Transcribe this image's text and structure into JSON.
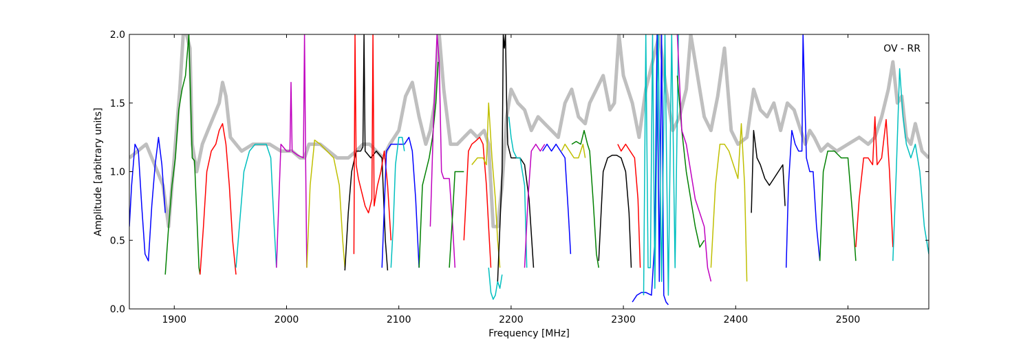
{
  "chart_data": {
    "type": "line",
    "title": "",
    "annotation": "OV - RR",
    "xlabel": "Frequency [MHz]",
    "ylabel": "Amplitude [arbitrary units]",
    "xlim": [
      1860,
      2572
    ],
    "ylim": [
      0,
      2.0
    ],
    "xticks": [
      1900,
      2000,
      2100,
      2200,
      2300,
      2400,
      2500
    ],
    "xtick_labels": [
      "1900",
      "2000",
      "2100",
      "2200",
      "2300",
      "2400",
      "2500"
    ],
    "yticks": [
      0.0,
      0.5,
      1.0,
      1.5,
      2.0
    ],
    "ytick_labels": [
      "0.0",
      "0.5",
      "1.0",
      "1.5",
      "2.0"
    ],
    "grid": false,
    "background_series": {
      "color": "#bfbfbf",
      "x": [
        1860,
        1875,
        1890,
        1895,
        1902,
        1905,
        1908,
        1911,
        1914,
        1916,
        1920,
        1925,
        1930,
        1935,
        1940,
        1943,
        1946,
        1950,
        1955,
        1960,
        1970,
        1985,
        1995,
        2005,
        2012,
        2016,
        2020,
        2030,
        2045,
        2055,
        2062,
        2068,
        2074,
        2080,
        2086,
        2092,
        2100,
        2106,
        2112,
        2118,
        2124,
        2128,
        2132,
        2136,
        2140,
        2146,
        2152,
        2158,
        2164,
        2170,
        2176,
        2180,
        2184,
        2188,
        2192,
        2196,
        2200,
        2206,
        2212,
        2218,
        2224,
        2230,
        2236,
        2242,
        2248,
        2254,
        2260,
        2266,
        2270,
        2276,
        2282,
        2288,
        2292,
        2296,
        2300,
        2304,
        2308,
        2314,
        2320,
        2326,
        2332,
        2338,
        2344,
        2350,
        2356,
        2360,
        2366,
        2372,
        2378,
        2384,
        2390,
        2396,
        2402,
        2410,
        2416,
        2422,
        2428,
        2434,
        2440,
        2446,
        2452,
        2458,
        2462,
        2466,
        2470,
        2476,
        2482,
        2490,
        2500,
        2510,
        2518,
        2524,
        2530,
        2536,
        2540,
        2544,
        2548,
        2552,
        2556,
        2560,
        2566,
        2572
      ],
      "y": [
        1.1,
        1.2,
        0.9,
        0.6,
        1.3,
        1.6,
        2.0,
        2.0,
        1.9,
        1.2,
        1.0,
        1.2,
        1.3,
        1.4,
        1.5,
        1.65,
        1.55,
        1.25,
        1.2,
        1.15,
        1.2,
        1.2,
        1.15,
        1.15,
        1.1,
        1.1,
        1.2,
        1.2,
        1.1,
        1.1,
        1.15,
        1.2,
        1.2,
        1.15,
        1.1,
        1.2,
        1.3,
        1.55,
        1.65,
        1.4,
        1.2,
        1.3,
        1.5,
        2.0,
        1.6,
        1.2,
        1.2,
        1.25,
        1.3,
        1.25,
        1.3,
        1.2,
        0.6,
        0.6,
        0.9,
        1.4,
        1.6,
        1.5,
        1.45,
        1.3,
        1.4,
        1.35,
        1.3,
        1.25,
        1.5,
        1.6,
        1.4,
        1.35,
        1.5,
        1.6,
        1.7,
        1.45,
        1.5,
        2.0,
        1.7,
        1.6,
        1.5,
        1.25,
        1.6,
        1.8,
        2.0,
        1.6,
        1.3,
        1.4,
        1.6,
        2.0,
        1.7,
        1.4,
        1.3,
        1.55,
        1.9,
        1.3,
        1.2,
        1.25,
        1.6,
        1.45,
        1.4,
        1.5,
        1.3,
        1.5,
        1.45,
        1.3,
        1.2,
        1.3,
        1.25,
        1.15,
        1.2,
        1.15,
        1.2,
        1.25,
        1.2,
        1.25,
        1.4,
        1.6,
        1.8,
        1.5,
        1.55,
        1.25,
        1.2,
        1.35,
        1.15,
        1.1
      ]
    },
    "series": [
      {
        "color": "#0000ff",
        "x": [
          1860,
          1862,
          1865,
          1868,
          1871,
          1874,
          1877,
          1880,
          1883,
          1886,
          1889,
          1892
        ],
        "y": [
          0.6,
          0.9,
          1.2,
          1.15,
          0.75,
          0.4,
          0.35,
          0.75,
          1.05,
          1.25,
          1.05,
          0.7
        ]
      },
      {
        "color": "#008000",
        "x": [
          1892,
          1895,
          1898,
          1901,
          1904,
          1907,
          1910,
          1913,
          1916,
          1918,
          1920,
          1922,
          1923
        ],
        "y": [
          0.25,
          0.6,
          0.9,
          1.1,
          1.45,
          1.6,
          1.7,
          2.0,
          1.1,
          1.08,
          0.7,
          0.3,
          0.25
        ]
      },
      {
        "color": "#ff0000",
        "x": [
          1923,
          1926,
          1929,
          1933,
          1937,
          1940,
          1943,
          1946,
          1949,
          1952,
          1955
        ],
        "y": [
          0.25,
          0.6,
          1.0,
          1.15,
          1.2,
          1.3,
          1.35,
          1.2,
          0.9,
          0.5,
          0.25
        ]
      },
      {
        "color": "#00bfbf",
        "x": [
          1955,
          1958,
          1962,
          1967,
          1972,
          1977,
          1982,
          1986,
          1989,
          1991
        ],
        "y": [
          0.3,
          0.6,
          1.0,
          1.15,
          1.2,
          1.2,
          1.2,
          1.1,
          0.6,
          0.3
        ]
      },
      {
        "color": "#bf00bf",
        "x": [
          1991,
          1995,
          2000,
          2003,
          2004,
          2005,
          2010,
          2015,
          2016,
          2017,
          2018
        ],
        "y": [
          0.3,
          1.2,
          1.15,
          1.15,
          1.65,
          1.15,
          1.12,
          1.1,
          2.0,
          1.1,
          0.3
        ]
      },
      {
        "color": "#bfbf00",
        "x": [
          2018,
          2021,
          2025,
          2030,
          2036,
          2042,
          2047,
          2050,
          2052
        ],
        "y": [
          0.3,
          0.9,
          1.23,
          1.2,
          1.15,
          1.1,
          0.9,
          0.5,
          0.3
        ]
      },
      {
        "color": "#000000",
        "x": [
          2052,
          2055,
          2058,
          2062,
          2066,
          2068,
          2069,
          2070,
          2075,
          2080,
          2085,
          2088,
          2090
        ],
        "y": [
          0.28,
          0.7,
          1.0,
          1.15,
          1.15,
          1.18,
          2.0,
          1.15,
          1.1,
          1.15,
          1.1,
          0.5,
          0.28
        ]
      },
      {
        "color": "#ff0000",
        "x": [
          2060,
          2061,
          2062,
          2064,
          2067,
          2070,
          2073,
          2076,
          2077,
          2078,
          2081,
          2084,
          2087,
          2090,
          2093
        ],
        "y": [
          0.4,
          2.0,
          1.05,
          0.95,
          0.85,
          0.75,
          0.7,
          0.8,
          2.0,
          0.75,
          0.9,
          1.0,
          1.15,
          0.9,
          0.5
        ]
      },
      {
        "color": "#0000ff",
        "x": [
          2085,
          2089,
          2093,
          2097,
          2101,
          2105,
          2109,
          2112,
          2115,
          2118
        ],
        "y": [
          0.3,
          1.15,
          1.2,
          1.2,
          1.2,
          1.2,
          1.25,
          1.15,
          0.8,
          0.3
        ]
      },
      {
        "color": "#00bfbf",
        "x": [
          2093,
          2095,
          2097,
          2100,
          2103,
          2105
        ],
        "y": [
          0.3,
          0.6,
          1.05,
          1.25,
          1.25,
          1.15
        ]
      },
      {
        "color": "#008000",
        "x": [
          2118,
          2121,
          2124,
          2127,
          2130,
          2133,
          2135
        ],
        "y": [
          0.3,
          0.9,
          1.0,
          1.1,
          1.25,
          1.5,
          1.8
        ]
      },
      {
        "color": "#bf00bf",
        "x": [
          2128,
          2131,
          2134,
          2136,
          2138,
          2140,
          2142,
          2145,
          2148,
          2150
        ],
        "y": [
          0.6,
          1.4,
          2.0,
          1.8,
          1.0,
          0.95,
          0.95,
          0.95,
          0.6,
          0.3
        ]
      },
      {
        "color": "#008000",
        "x": [
          2145,
          2148,
          2150,
          2152,
          2155,
          2158
        ],
        "y": [
          0.3,
          0.7,
          1.0,
          1.0,
          1.0,
          1.0
        ]
      },
      {
        "color": "#ff0000",
        "x": [
          2158,
          2162,
          2165,
          2168,
          2172,
          2175,
          2178,
          2180,
          2182
        ],
        "y": [
          0.5,
          1.15,
          1.2,
          1.22,
          1.25,
          1.2,
          0.9,
          0.6,
          0.3
        ]
      },
      {
        "color": "#bfbf00",
        "x": [
          2165,
          2170,
          2175,
          2178,
          2180,
          2183,
          2186,
          2188,
          2190
        ],
        "y": [
          1.05,
          1.1,
          1.1,
          1.05,
          1.5,
          1.1,
          0.8,
          0.5,
          0.3
        ]
      },
      {
        "color": "#00bfbf",
        "x": [
          2180,
          2182,
          2184,
          2186,
          2188,
          2190,
          2192
        ],
        "y": [
          0.3,
          0.12,
          0.07,
          0.1,
          0.2,
          0.15,
          0.25
        ]
      },
      {
        "color": "#000000",
        "x": [
          2188,
          2190,
          2192,
          2193,
          2194,
          2195,
          2196,
          2197,
          2200,
          2204,
          2208,
          2212,
          2216,
          2220
        ],
        "y": [
          0.2,
          0.6,
          1.0,
          2.0,
          1.9,
          2.0,
          1.5,
          1.2,
          1.1,
          1.1,
          1.1,
          1.05,
          0.8,
          0.3
        ]
      },
      {
        "color": "#00bfbf",
        "x": [
          2198,
          2200,
          2202,
          2205,
          2208,
          2212,
          2214
        ],
        "y": [
          1.4,
          1.25,
          1.15,
          1.1,
          1.1,
          0.9,
          0.3
        ]
      },
      {
        "color": "#bf00bf",
        "x": [
          2212,
          2215,
          2218,
          2222,
          2226,
          2230
        ],
        "y": [
          0.3,
          0.8,
          1.15,
          1.2,
          1.15,
          1.2
        ]
      },
      {
        "color": "#0000ff",
        "x": [
          2228,
          2232,
          2236,
          2240,
          2244,
          2248,
          2251,
          2253
        ],
        "y": [
          1.15,
          1.2,
          1.15,
          1.2,
          1.15,
          1.1,
          0.7,
          0.4
        ]
      },
      {
        "color": "#bfbf00",
        "x": [
          2245,
          2248,
          2252,
          2256,
          2260,
          2264,
          2266
        ],
        "y": [
          1.15,
          1.2,
          1.15,
          1.1,
          1.1,
          1.2,
          1.1
        ]
      },
      {
        "color": "#008000",
        "x": [
          2254,
          2258,
          2262,
          2265,
          2268,
          2270,
          2273,
          2276,
          2278
        ],
        "y": [
          1.2,
          1.22,
          1.2,
          1.3,
          1.2,
          1.15,
          0.8,
          0.4,
          0.3
        ]
      },
      {
        "color": "#000000",
        "x": [
          2278,
          2282,
          2286,
          2290,
          2294,
          2298,
          2302,
          2305,
          2307
        ],
        "y": [
          0.35,
          1.0,
          1.1,
          1.12,
          1.12,
          1.1,
          1.0,
          0.7,
          0.3
        ]
      },
      {
        "color": "#ff0000",
        "x": [
          2295,
          2298,
          2302,
          2306,
          2310,
          2313,
          2315
        ],
        "y": [
          1.2,
          1.15,
          1.2,
          1.15,
          1.1,
          0.8,
          0.3
        ]
      },
      {
        "color": "#0000ff",
        "x": [
          2308,
          2312,
          2316,
          2320,
          2325,
          2328,
          2330,
          2332,
          2334,
          2336,
          2338,
          2340
        ],
        "y": [
          0.05,
          0.1,
          0.12,
          0.12,
          0.1,
          0.5,
          2.0,
          0.2,
          2.0,
          0.1,
          0.05,
          0.03
        ]
      },
      {
        "color": "#00bfbf",
        "x": [
          2318,
          2320,
          2322,
          2324,
          2326,
          2328,
          2331,
          2334,
          2337,
          2340,
          2343,
          2346,
          2349
        ],
        "y": [
          0.1,
          2.0,
          0.3,
          0.3,
          2.0,
          0.15,
          2.0,
          0.2,
          2.0,
          0.1,
          2.0,
          0.3,
          2.0
        ]
      },
      {
        "color": "#008000",
        "x": [
          2348,
          2352,
          2356,
          2360,
          2364,
          2368,
          2372
        ],
        "y": [
          1.7,
          1.3,
          1.0,
          0.8,
          0.6,
          0.45,
          0.5
        ]
      },
      {
        "color": "#bf00bf",
        "x": [
          2348,
          2352,
          2356,
          2360,
          2364,
          2368,
          2372,
          2375,
          2378
        ],
        "y": [
          2.0,
          1.3,
          1.2,
          1.0,
          0.8,
          0.7,
          0.6,
          0.3,
          0.2
        ]
      },
      {
        "color": "#bfbf00",
        "x": [
          2378,
          2382,
          2386,
          2390,
          2394,
          2398,
          2402,
          2405,
          2408,
          2410
        ],
        "y": [
          0.3,
          0.9,
          1.2,
          1.2,
          1.15,
          1.05,
          0.95,
          1.35,
          0.9,
          0.2
        ]
      },
      {
        "color": "#000000",
        "x": [
          2414,
          2416,
          2419,
          2422,
          2426,
          2430,
          2434,
          2438,
          2442,
          2444
        ],
        "y": [
          0.7,
          1.3,
          1.1,
          1.05,
          0.95,
          0.9,
          0.95,
          1.0,
          1.05,
          0.75
        ]
      },
      {
        "color": "#0000ff",
        "x": [
          2445,
          2447,
          2450,
          2453,
          2456,
          2459,
          2460,
          2463,
          2466,
          2469,
          2472,
          2475
        ],
        "y": [
          0.3,
          0.9,
          1.3,
          1.2,
          1.15,
          1.15,
          2.0,
          1.1,
          1.0,
          1.0,
          0.6,
          0.35
        ]
      },
      {
        "color": "#008000",
        "x": [
          2475,
          2478,
          2482,
          2488,
          2494,
          2500,
          2504,
          2507
        ],
        "y": [
          0.35,
          1.0,
          1.15,
          1.15,
          1.1,
          1.1,
          0.7,
          0.35
        ]
      },
      {
        "color": "#ff0000",
        "x": [
          2507,
          2510,
          2514,
          2518,
          2522,
          2524,
          2526,
          2530,
          2534,
          2537,
          2540
        ],
        "y": [
          0.45,
          0.8,
          1.1,
          1.1,
          1.05,
          1.4,
          1.05,
          1.1,
          1.38,
          1.0,
          0.45
        ]
      },
      {
        "color": "#00bfbf",
        "x": [
          2540,
          2543,
          2546,
          2549,
          2552,
          2556,
          2560,
          2564,
          2568,
          2572
        ],
        "y": [
          0.35,
          1.0,
          1.75,
          1.4,
          1.2,
          1.1,
          1.2,
          1.0,
          0.6,
          0.4
        ]
      }
    ]
  }
}
